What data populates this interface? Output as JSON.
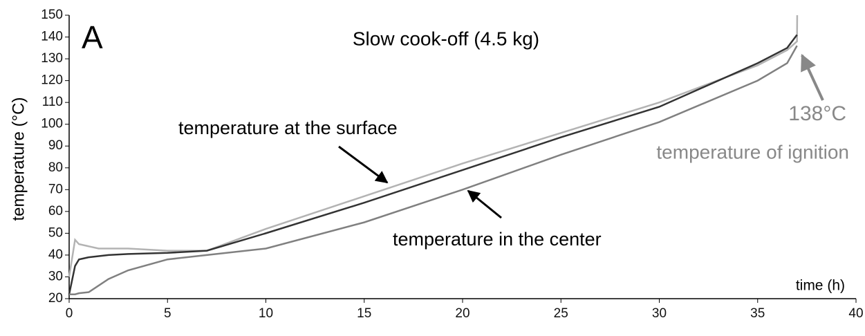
{
  "chart_data": {
    "type": "line",
    "title": "Slow cook-off (4.5 kg)",
    "panel_label": "A",
    "x_label": "time (h)",
    "y_label": "temperature (°C)",
    "x": [
      0,
      0.3,
      0.5,
      1,
      1.5,
      2,
      3,
      5,
      7,
      10,
      15,
      20,
      25,
      30,
      35,
      36.5,
      37,
      37.01
    ],
    "series": [
      {
        "color": "#b3b3b3",
        "values": [
          30,
          47,
          45,
          44,
          43,
          43,
          43,
          42,
          42,
          52,
          67,
          82,
          96,
          110,
          127,
          134,
          138,
          150
        ]
      },
      {
        "color": "#333333",
        "values": [
          22,
          35,
          38,
          39,
          39.5,
          40,
          40.5,
          41,
          42,
          50,
          64,
          79,
          94,
          108,
          128,
          135,
          141,
          null
        ]
      },
      {
        "color": "#808080",
        "values": [
          22,
          22,
          22.5,
          23,
          26,
          29,
          33,
          38,
          40,
          43,
          55,
          70,
          86,
          101,
          120,
          128,
          136,
          null
        ]
      }
    ],
    "xlim": [
      0,
      40
    ],
    "xticks": [
      0,
      5,
      10,
      15,
      20,
      25,
      30,
      35,
      40
    ],
    "ylim": [
      20,
      150
    ],
    "yticks": [
      20,
      30,
      40,
      50,
      60,
      70,
      80,
      90,
      100,
      110,
      120,
      130,
      140,
      150
    ],
    "annotations": [
      "temperature at the surface",
      "temperature in the center",
      "138°C",
      "temperature of ignition"
    ]
  }
}
